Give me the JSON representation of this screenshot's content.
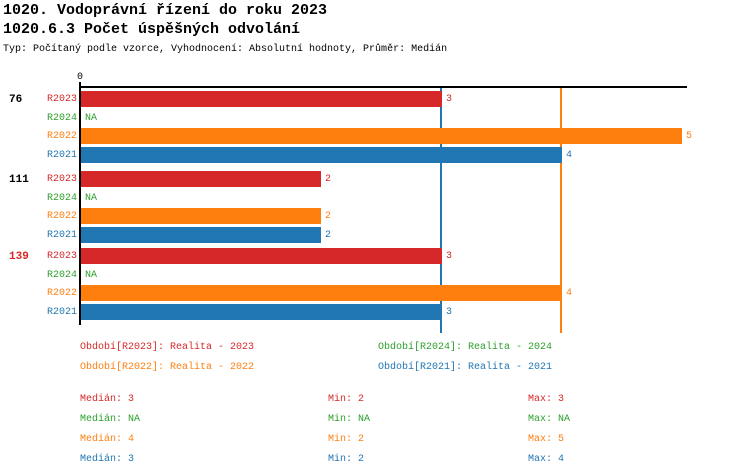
{
  "header": {
    "title": "1020. Vodoprávní řízení do roku 2023",
    "subtitle": "1020.6.3 Počet úspěšných odvolání",
    "meta": "Typ: Počítaný podle vzorce, Vyhodnocení: Absolutní hodnoty, Průměr: Medián"
  },
  "chart_data": {
    "type": "bar",
    "orientation": "horizontal",
    "x_axis": {
      "tick_labels": [
        "0"
      ],
      "min": 0,
      "max": 5,
      "grid": false
    },
    "series_order": [
      "R2023",
      "R2024",
      "R2022",
      "R2021"
    ],
    "series_colors": {
      "R2023": "#d62828",
      "R2024": "#2ca02c",
      "R2022": "#ff7f0e",
      "R2021": "#2176b4"
    },
    "groups": [
      {
        "label": "76",
        "label_color": "#000000",
        "values": {
          "R2023": 3,
          "R2024": null,
          "R2022": 5,
          "R2021": 4
        },
        "value_labels": {
          "R2023": "3",
          "R2024": "NA",
          "R2022": "5",
          "R2021": "4"
        }
      },
      {
        "label": "111",
        "label_color": "#000000",
        "values": {
          "R2023": 2,
          "R2024": null,
          "R2022": 2,
          "R2021": 2
        },
        "value_labels": {
          "R2023": "2",
          "R2024": "NA",
          "R2022": "2",
          "R2021": "2"
        }
      },
      {
        "label": "139",
        "label_color": "#d62828",
        "values": {
          "R2023": 3,
          "R2024": null,
          "R2022": 4,
          "R2021": 3
        },
        "value_labels": {
          "R2023": "3",
          "R2024": "NA",
          "R2022": "4",
          "R2021": "3"
        }
      }
    ],
    "median_lines": [
      {
        "series": "R2021",
        "value": 3,
        "color": "#2176b4"
      },
      {
        "series": "R2022",
        "value": 4,
        "color": "#ff7f0e"
      }
    ]
  },
  "legend": {
    "items": [
      {
        "label": "Období[R2023]: Realita - 2023",
        "color": "#d62828"
      },
      {
        "label": "Období[R2024]: Realita - 2024",
        "color": "#2ca02c"
      },
      {
        "label": "Období[R2022]: Realita - 2022",
        "color": "#ff7f0e"
      },
      {
        "label": "Období[R2021]: Realita - 2021",
        "color": "#2176b4"
      }
    ]
  },
  "stats": {
    "rows": [
      {
        "series": "R2023",
        "color": "#d62828",
        "median": "Medián: 3",
        "min": "Min: 2",
        "max": "Max: 3"
      },
      {
        "series": "R2024",
        "color": "#2ca02c",
        "median": "Medián: NA",
        "min": "Min: NA",
        "max": "Max: NA"
      },
      {
        "series": "R2022",
        "color": "#ff7f0e",
        "median": "Medián: 4",
        "min": "Min: 2",
        "max": "Max: 5"
      },
      {
        "series": "R2021",
        "color": "#2176b4",
        "median": "Medián: 3",
        "min": "Min: 2",
        "max": "Max: 4"
      }
    ]
  }
}
